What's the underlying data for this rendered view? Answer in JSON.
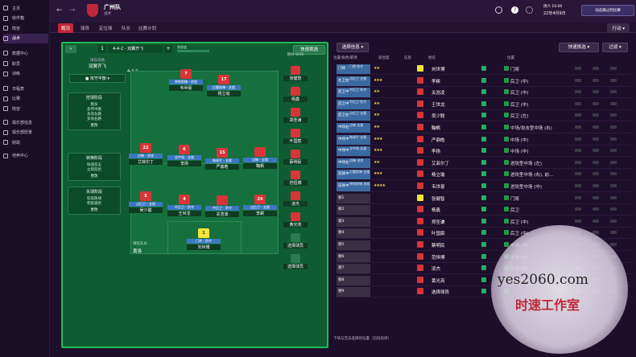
{
  "sidebar": {
    "items": [
      "主页",
      "收件箱",
      "阵容",
      "战术",
      "数据中心",
      "职员",
      "训练",
      "日程表",
      "比赛",
      "阵容",
      "俱乐部信息",
      "俱乐部愿景",
      "财政",
      "培养中心"
    ]
  },
  "header": {
    "club": "广州队",
    "subtitle": "战术",
    "date": "周六 10:00",
    "date2": "22年4月9日",
    "continue": "动态跳过到比赛",
    "action": "行动"
  },
  "tabs": [
    "概况",
    "球员",
    "定位球",
    "队长",
    "比赛计划"
  ],
  "tactic": {
    "label": "球队风格",
    "name": "双翼齐飞",
    "formation_title": "4-4-2 - 双翼齐飞",
    "formation": "4-4-2",
    "mentality": "攻守平衡",
    "quick": "快速挑选",
    "analysis": "分析",
    "slot": "1",
    "fit_label": "熟悉度"
  },
  "left_cards": [
    {
      "title": "控球阶段",
      "lines": [
        "稍多",
        "多传中路",
        "多攻左路",
        "多攻右路"
      ],
      "more": "更改"
    },
    {
      "title": "转换阶段",
      "lines": [
        "快速反击",
        "立即反抢"
      ],
      "more": "更改"
    },
    {
      "title": "失球阶段",
      "lines": [
        "较高防线",
        "积极逼抢"
      ],
      "more": "更改"
    }
  ],
  "players": [
    {
      "num": "7",
      "role": "突前前锋 - 进攻",
      "name": "韦世豪"
    },
    {
      "num": "17",
      "role": "后腰前锋 - 支援",
      "name": "杨立瑜"
    },
    {
      "num": "22",
      "role": "边锋 - 进攻",
      "name": "艾菲尔丁"
    },
    {
      "num": "6",
      "role": "全中场 - 支援",
      "name": "李扬"
    },
    {
      "num": "15",
      "role": "拖球手 - 支援",
      "name": "严鼎皓"
    },
    {
      "num": "",
      "role": "边锋 - 支援",
      "name": "鞠枫"
    },
    {
      "num": "5",
      "role": "边后卫 - 支援",
      "name": "吴少聪"
    },
    {
      "num": "4",
      "role": "中后卫 - 防守",
      "name": "王世龙"
    },
    {
      "num": "",
      "role": "中后卫 - 防守",
      "name": "关浩凌"
    },
    {
      "num": "24",
      "role": "边后卫 - 支援",
      "name": "李耕"
    },
    {
      "num": "1",
      "role": "门将 - 防守",
      "name": "刘世博"
    }
  ],
  "captain": {
    "label": "球队队长",
    "name": "黄洛"
  },
  "subs": [
    "张健智",
    "杨鑫",
    "郑圣谦",
    "叶国宸",
    "蔡明民",
    "范恒博",
    "凌杰",
    "黄光亮",
    "选择球员",
    "选择球员"
  ],
  "subs_header": "替补",
  "subs_count": "8/10",
  "table": {
    "filter": "选择信息",
    "quick": "快速挑选",
    "search": "过滤",
    "hdr": [
      "位置/角色/职责",
      "适合度",
      "信息",
      "姓名",
      "位置"
    ],
    "rows": [
      {
        "pos": "门将",
        "role": "门将 防守",
        "stars": "★★",
        "name": "刘世博",
        "p": "门将",
        "gk": true
      },
      {
        "pos": "左卫右",
        "role": "边后卫 支援",
        "stars": "★★★",
        "name": "李耕",
        "p": "后卫 (中)"
      },
      {
        "pos": "后卫中",
        "role": "中后卫 防守",
        "stars": "★★",
        "name": "关浩凌",
        "p": "后卫 (中)"
      },
      {
        "pos": "后卫中",
        "role": "中后卫 防守",
        "stars": "★★",
        "name": "王世龙",
        "p": "后卫 (中)"
      },
      {
        "pos": "后卫左",
        "role": "边后卫 支援",
        "stars": "★★",
        "name": "吴少聪",
        "p": "后卫 (左)"
      },
      {
        "pos": "中场右",
        "role": "边锋 支援",
        "stars": "★★",
        "name": "鞠枫",
        "p": "中场/攻击型中场 (右)"
      },
      {
        "pos": "中场中",
        "role": "拖球手 支援",
        "stars": "★★★",
        "name": "严鼎皓",
        "p": "中场 (中)"
      },
      {
        "pos": "中场中",
        "role": "全中场 支援",
        "stars": "★★★",
        "name": "李扬",
        "p": "中场 (中)"
      },
      {
        "pos": "中场左",
        "role": "边锋 进攻",
        "stars": "★★",
        "name": "艾菲尔丁",
        "p": "进攻型中场 (左)"
      },
      {
        "pos": "前锋中",
        "role": "后腰前锋 支援",
        "stars": "★★★",
        "name": "杨立瑜",
        "p": "进攻型中场 (右), 前..."
      },
      {
        "pos": "前锋中",
        "role": "突前前锋 进攻",
        "stars": "★★★★",
        "name": "韦世豪",
        "p": "进攻型中场 (中)"
      },
      {
        "pos": "替1",
        "role": "",
        "stars": "",
        "name": "张健智",
        "p": "门将",
        "gk": true
      },
      {
        "pos": "替2",
        "role": "",
        "stars": "",
        "name": "杨鑫",
        "p": "后卫"
      },
      {
        "pos": "替3",
        "role": "",
        "stars": "",
        "name": "郑圣谦",
        "p": "后卫 (中)"
      },
      {
        "pos": "替4",
        "role": "",
        "stars": "",
        "name": "叶国宸",
        "p": "后卫 (中)"
      },
      {
        "pos": "替5",
        "role": "",
        "stars": "",
        "name": "蔡明民",
        "p": "中场 (中)"
      },
      {
        "pos": "替6",
        "role": "",
        "stars": "",
        "name": "范恒博",
        "p": "中场 (右)"
      },
      {
        "pos": "替7",
        "role": "",
        "stars": "",
        "name": "凌杰",
        "p": "中场 (中)"
      },
      {
        "pos": "替8",
        "role": "",
        "stars": "",
        "name": "黄光亮",
        "p": "前锋 (中)"
      },
      {
        "pos": "替9",
        "role": "",
        "stars": "",
        "name": "选择球员",
        "p": ""
      }
    ],
    "footer": "下场与无法选择的位置（包括伤停）"
  },
  "watermark": {
    "url": "yes2060.com",
    "text": "时速工作室"
  }
}
